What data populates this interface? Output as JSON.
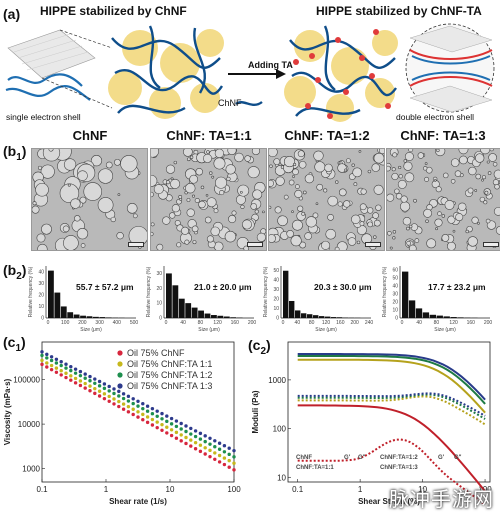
{
  "panel_a": {
    "label": "(a)",
    "title_left": "HIPPE stabilized by ChNF",
    "title_right": "HIPPE stabilized by ChNF-TA",
    "arrow_label": "Adding TA",
    "chnf_legend": "ChNF",
    "shell_left": "single electron shell",
    "shell_right": "double electron shell"
  },
  "panel_b1": {
    "label": "(b",
    "label_sub": "1",
    "label_end": ")",
    "columns": [
      "ChNF",
      "ChNF: TA=1:1",
      "ChNF: TA=1:2",
      "ChNF: TA=1:3"
    ]
  },
  "panel_b2": {
    "label": "(b",
    "label_sub": "2",
    "label_end": ")",
    "ylabel": "Relative frequency (%)",
    "xlabel": "Size (μm)",
    "values_text": [
      "55.7 ± 57.2 μm",
      "21.0 ± 20.0 μm",
      "20.3 ± 30.0 μm",
      "17.7 ± 23.2 μm"
    ]
  },
  "panel_c1": {
    "label": "(c",
    "label_sub": "1",
    "label_end": ")"
  },
  "panel_c2": {
    "label": "(c",
    "label_sub": "2",
    "label_end": ")"
  },
  "watermark": "脉冲手游网",
  "chart_data": [
    {
      "type": "bar",
      "id": "hist1",
      "xlabel": "Size (μm)",
      "ylabel": "Relative frequency (%)",
      "ticks_x": [
        "0",
        "100",
        "200",
        "300",
        "400",
        "500"
      ],
      "ticks_y": [
        "0",
        "10",
        "20",
        "30",
        "40"
      ],
      "ylim": [
        0,
        45
      ],
      "values": [
        41,
        22,
        10,
        5,
        3,
        2,
        1.5,
        1,
        0.8,
        0.5,
        0.3,
        0.2
      ]
    },
    {
      "type": "bar",
      "id": "hist2",
      "xlabel": "Size (μm)",
      "ylabel": "Relative frequency (%)",
      "ticks_x": [
        "0",
        "40",
        "80",
        "120",
        "160",
        "200"
      ],
      "ticks_y": [
        "0",
        "10",
        "20",
        "30"
      ],
      "ylim": [
        0,
        35
      ],
      "values": [
        30,
        22,
        13,
        10,
        7,
        5,
        3,
        2,
        1.5,
        1,
        0.5,
        0.3
      ]
    },
    {
      "type": "bar",
      "id": "hist3",
      "xlabel": "Size (μm)",
      "ylabel": "Relative frequency (%)",
      "ticks_x": [
        "0",
        "40",
        "80",
        "120",
        "160",
        "200",
        "240"
      ],
      "ticks_y": [
        "0",
        "10",
        "20",
        "30",
        "40",
        "50"
      ],
      "ylim": [
        0,
        55
      ],
      "values": [
        50,
        18,
        8,
        5,
        4,
        3,
        2,
        1.5,
        1,
        0.8,
        0.5,
        0.3,
        0.2
      ]
    },
    {
      "type": "bar",
      "id": "hist4",
      "xlabel": "Size (μm)",
      "ylabel": "Relative frequency (%)",
      "ticks_x": [
        "0",
        "40",
        "80",
        "120",
        "160",
        "200"
      ],
      "ticks_y": [
        "0",
        "10",
        "20",
        "30",
        "40",
        "50",
        "60"
      ],
      "ylim": [
        0,
        65
      ],
      "values": [
        58,
        22,
        12,
        7,
        4,
        3,
        2,
        1.2,
        0.8,
        0.5,
        0.3
      ]
    },
    {
      "type": "scatter",
      "id": "viscosity",
      "xlabel": "Shear rate (1/s)",
      "ylabel": "Viscosity (mPa·s)",
      "x_log": true,
      "y_log": true,
      "xlim": [
        0.1,
        100
      ],
      "ylim": [
        500,
        700000
      ],
      "ticks_x": [
        "0.1",
        "1",
        "10",
        "100"
      ],
      "ticks_y": [
        "1000",
        "10000",
        "100000"
      ],
      "series": [
        {
          "name": "Oil 75% ChNF",
          "color": "#d7263d",
          "y0": 220000,
          "slope": -0.79
        },
        {
          "name": "Oil 75% ChNF:TA 1:1",
          "color": "#c6b81c",
          "y0": 270000,
          "slope": -0.77
        },
        {
          "name": "Oil 75% ChNF:TA 1:2",
          "color": "#1e8f4e",
          "y0": 350000,
          "slope": -0.76
        },
        {
          "name": "Oil 75% ChNF:TA 1:3",
          "color": "#2d3a8c",
          "y0": 420000,
          "slope": -0.74
        }
      ]
    },
    {
      "type": "line",
      "id": "moduli",
      "xlabel": "Shear Strain (%)",
      "ylabel": "Moduli (Pa)",
      "x_log": true,
      "y_log": true,
      "xlim": [
        0.07,
        120
      ],
      "ylim": [
        8,
        6000
      ],
      "ticks_x": [
        "0.1",
        "1",
        "10",
        "100"
      ],
      "ticks_y": [
        "10",
        "100",
        "1000"
      ],
      "legend": [
        {
          "name": "ChNF",
          "marker": "G'",
          "color": "#c0202a"
        },
        {
          "name": "ChNF:TA=1:1",
          "marker": "G\"",
          "color": "#b5a21c"
        },
        {
          "name": "ChNF:TA=1:2",
          "marker": "G'",
          "color": "#1e7a45"
        },
        {
          "name": "ChNF:TA=1:3",
          "marker": "G\"",
          "color": "#283b8a"
        }
      ],
      "legend_labels": [
        "ChNF",
        "G'",
        "G\"",
        "ChNF:TA=1:2",
        "G'",
        "G\"",
        "ChNF:TA=1:1",
        "ChNF:TA=1:3"
      ]
    }
  ]
}
